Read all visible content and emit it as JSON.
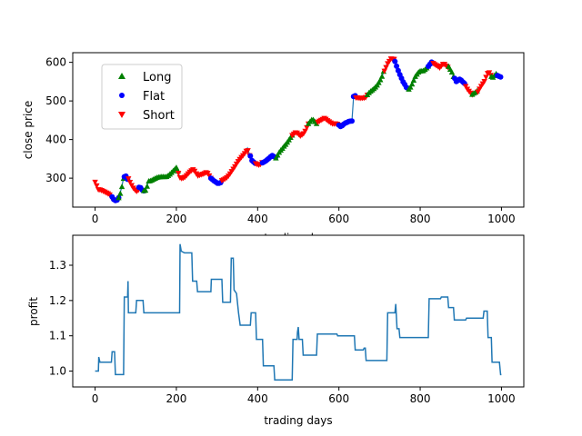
{
  "chart_data": [
    {
      "type": "scatter",
      "xlabel": "trading days",
      "ylabel": "close price",
      "xlim": [
        -55,
        1055
      ],
      "ylim": [
        225,
        625
      ],
      "xticks": [
        0,
        200,
        400,
        600,
        800,
        1000
      ],
      "yticks": [
        300,
        400,
        500,
        600
      ],
      "legend_position": "upper-left",
      "line_color": "#1f77b4",
      "price_path": [
        [
          0,
          290
        ],
        [
          8,
          268
        ],
        [
          20,
          265
        ],
        [
          35,
          262
        ],
        [
          45,
          244
        ],
        [
          52,
          242
        ],
        [
          60,
          255
        ],
        [
          65,
          275
        ],
        [
          70,
          300
        ],
        [
          75,
          308
        ],
        [
          82,
          296
        ],
        [
          88,
          282
        ],
        [
          95,
          272
        ],
        [
          102,
          268
        ],
        [
          110,
          275
        ],
        [
          118,
          265
        ],
        [
          125,
          270
        ],
        [
          132,
          295
        ],
        [
          145,
          298
        ],
        [
          160,
          300
        ],
        [
          175,
          305
        ],
        [
          190,
          318
        ],
        [
          200,
          325
        ],
        [
          210,
          300
        ],
        [
          220,
          305
        ],
        [
          232,
          315
        ],
        [
          242,
          320
        ],
        [
          252,
          305
        ],
        [
          262,
          312
        ],
        [
          275,
          318
        ],
        [
          285,
          298
        ],
        [
          292,
          290
        ],
        [
          302,
          285
        ],
        [
          315,
          295
        ],
        [
          325,
          305
        ],
        [
          335,
          318
        ],
        [
          345,
          330
        ],
        [
          355,
          345
        ],
        [
          365,
          360
        ],
        [
          375,
          378
        ],
        [
          385,
          345
        ],
        [
          395,
          340
        ],
        [
          405,
          332
        ],
        [
          415,
          342
        ],
        [
          425,
          352
        ],
        [
          435,
          360
        ],
        [
          445,
          350
        ],
        [
          455,
          372
        ],
        [
          465,
          385
        ],
        [
          475,
          395
        ],
        [
          485,
          408
        ],
        [
          495,
          418
        ],
        [
          505,
          412
        ],
        [
          515,
          420
        ],
        [
          525,
          440
        ],
        [
          535,
          450
        ],
        [
          545,
          440
        ],
        [
          555,
          448
        ],
        [
          565,
          458
        ],
        [
          575,
          450
        ],
        [
          585,
          440
        ],
        [
          595,
          438
        ],
        [
          605,
          432
        ],
        [
          615,
          445
        ],
        [
          625,
          450
        ],
        [
          632,
          448
        ],
        [
          636,
          510
        ],
        [
          645,
          512
        ],
        [
          655,
          508
        ],
        [
          665,
          505
        ],
        [
          675,
          520
        ],
        [
          685,
          532
        ],
        [
          695,
          545
        ],
        [
          705,
          560
        ],
        [
          712,
          580
        ],
        [
          720,
          600
        ],
        [
          728,
          610
        ],
        [
          738,
          605
        ],
        [
          748,
          575
        ],
        [
          758,
          548
        ],
        [
          768,
          528
        ],
        [
          778,
          538
        ],
        [
          788,
          560
        ],
        [
          798,
          575
        ],
        [
          808,
          580
        ],
        [
          818,
          590
        ],
        [
          828,
          600
        ],
        [
          838,
          590
        ],
        [
          848,
          585
        ],
        [
          858,
          600
        ],
        [
          868,
          590
        ],
        [
          878,
          575
        ],
        [
          888,
          550
        ],
        [
          898,
          560
        ],
        [
          908,
          548
        ],
        [
          918,
          530
        ],
        [
          928,
          515
        ],
        [
          938,
          520
        ],
        [
          948,
          535
        ],
        [
          958,
          548
        ],
        [
          968,
          575
        ],
        [
          978,
          562
        ],
        [
          988,
          570
        ],
        [
          1000,
          560
        ]
      ],
      "signal_segments": [
        {
          "series": "Short",
          "from": 0,
          "to": 42
        },
        {
          "series": "Flat",
          "from": 42,
          "to": 58
        },
        {
          "series": "Long",
          "from": 58,
          "to": 72
        },
        {
          "series": "Flat",
          "from": 72,
          "to": 82
        },
        {
          "series": "Short",
          "from": 82,
          "to": 108
        },
        {
          "series": "Flat",
          "from": 108,
          "to": 120
        },
        {
          "series": "Long",
          "from": 120,
          "to": 205
        },
        {
          "series": "Short",
          "from": 205,
          "to": 285
        },
        {
          "series": "Flat",
          "from": 285,
          "to": 312
        },
        {
          "series": "Short",
          "from": 312,
          "to": 382
        },
        {
          "series": "Flat",
          "from": 382,
          "to": 395
        },
        {
          "series": "Short",
          "from": 395,
          "to": 412
        },
        {
          "series": "Flat",
          "from": 412,
          "to": 445
        },
        {
          "series": "Long",
          "from": 445,
          "to": 485
        },
        {
          "series": "Short",
          "from": 485,
          "to": 525
        },
        {
          "series": "Long",
          "from": 525,
          "to": 548
        },
        {
          "series": "Short",
          "from": 548,
          "to": 600
        },
        {
          "series": "Flat",
          "from": 600,
          "to": 642
        },
        {
          "series": "Short",
          "from": 642,
          "to": 670
        },
        {
          "series": "Long",
          "from": 670,
          "to": 712
        },
        {
          "series": "Short",
          "from": 712,
          "to": 738
        },
        {
          "series": "Flat",
          "from": 738,
          "to": 772
        },
        {
          "series": "Long",
          "from": 772,
          "to": 820
        },
        {
          "series": "Flat",
          "from": 820,
          "to": 832
        },
        {
          "series": "Short",
          "from": 832,
          "to": 870
        },
        {
          "series": "Long",
          "from": 870,
          "to": 885
        },
        {
          "series": "Flat",
          "from": 885,
          "to": 912
        },
        {
          "series": "Short",
          "from": 912,
          "to": 928
        },
        {
          "series": "Long",
          "from": 928,
          "to": 942
        },
        {
          "series": "Short",
          "from": 942,
          "to": 975
        },
        {
          "series": "Long",
          "from": 975,
          "to": 990
        },
        {
          "series": "Flat",
          "from": 990,
          "to": 1000
        }
      ],
      "series": [
        {
          "name": "Long",
          "color": "#008000",
          "marker": "triangle-up"
        },
        {
          "name": "Flat",
          "color": "#0000ff",
          "marker": "circle"
        },
        {
          "name": "Short",
          "color": "#ff0000",
          "marker": "triangle-down"
        }
      ]
    },
    {
      "type": "line",
      "xlabel": "trading days",
      "ylabel": "profit",
      "xlim": [
        -55,
        1055
      ],
      "ylim": [
        0.955,
        1.385
      ],
      "xticks": [
        0,
        200,
        400,
        600,
        800,
        1000
      ],
      "yticks": [
        1.0,
        1.1,
        1.2,
        1.3
      ],
      "color": "#1f77b4",
      "step_points": [
        [
          0,
          1.0
        ],
        [
          8,
          1.0
        ],
        [
          9,
          1.04
        ],
        [
          12,
          1.025
        ],
        [
          40,
          1.025
        ],
        [
          42,
          1.055
        ],
        [
          48,
          1.055
        ],
        [
          50,
          0.99
        ],
        [
          70,
          0.99
        ],
        [
          72,
          1.21
        ],
        [
          80,
          1.21
        ],
        [
          81,
          1.255
        ],
        [
          82,
          1.165
        ],
        [
          100,
          1.165
        ],
        [
          102,
          1.2
        ],
        [
          118,
          1.2
        ],
        [
          120,
          1.165
        ],
        [
          208,
          1.165
        ],
        [
          209,
          1.36
        ],
        [
          212,
          1.34
        ],
        [
          220,
          1.335
        ],
        [
          238,
          1.335
        ],
        [
          240,
          1.255
        ],
        [
          250,
          1.255
        ],
        [
          252,
          1.225
        ],
        [
          285,
          1.225
        ],
        [
          286,
          1.26
        ],
        [
          312,
          1.26
        ],
        [
          314,
          1.195
        ],
        [
          333,
          1.195
        ],
        [
          335,
          1.32
        ],
        [
          340,
          1.32
        ],
        [
          342,
          1.23
        ],
        [
          348,
          1.22
        ],
        [
          353,
          1.165
        ],
        [
          357,
          1.13
        ],
        [
          382,
          1.13
        ],
        [
          384,
          1.165
        ],
        [
          395,
          1.165
        ],
        [
          397,
          1.09
        ],
        [
          412,
          1.09
        ],
        [
          414,
          1.015
        ],
        [
          440,
          1.015
        ],
        [
          442,
          0.975
        ],
        [
          485,
          0.975
        ],
        [
          487,
          1.09
        ],
        [
          497,
          1.09
        ],
        [
          498,
          1.11
        ],
        [
          500,
          1.125
        ],
        [
          502,
          1.09
        ],
        [
          510,
          1.09
        ],
        [
          512,
          1.045
        ],
        [
          545,
          1.045
        ],
        [
          547,
          1.105
        ],
        [
          595,
          1.105
        ],
        [
          597,
          1.1
        ],
        [
          638,
          1.1
        ],
        [
          640,
          1.06
        ],
        [
          660,
          1.06
        ],
        [
          662,
          1.065
        ],
        [
          665,
          1.065
        ],
        [
          667,
          1.03
        ],
        [
          718,
          1.03
        ],
        [
          720,
          1.165
        ],
        [
          738,
          1.165
        ],
        [
          740,
          1.19
        ],
        [
          741,
          1.165
        ],
        [
          743,
          1.12
        ],
        [
          748,
          1.12
        ],
        [
          750,
          1.095
        ],
        [
          820,
          1.095
        ],
        [
          822,
          1.205
        ],
        [
          850,
          1.205
        ],
        [
          852,
          1.21
        ],
        [
          868,
          1.21
        ],
        [
          870,
          1.18
        ],
        [
          882,
          1.18
        ],
        [
          884,
          1.145
        ],
        [
          912,
          1.145
        ],
        [
          914,
          1.15
        ],
        [
          955,
          1.15
        ],
        [
          957,
          1.17
        ],
        [
          965,
          1.17
        ],
        [
          967,
          1.095
        ],
        [
          975,
          1.095
        ],
        [
          977,
          1.025
        ],
        [
          995,
          1.025
        ],
        [
          998,
          0.99
        ],
        [
          1000,
          0.99
        ]
      ]
    }
  ]
}
